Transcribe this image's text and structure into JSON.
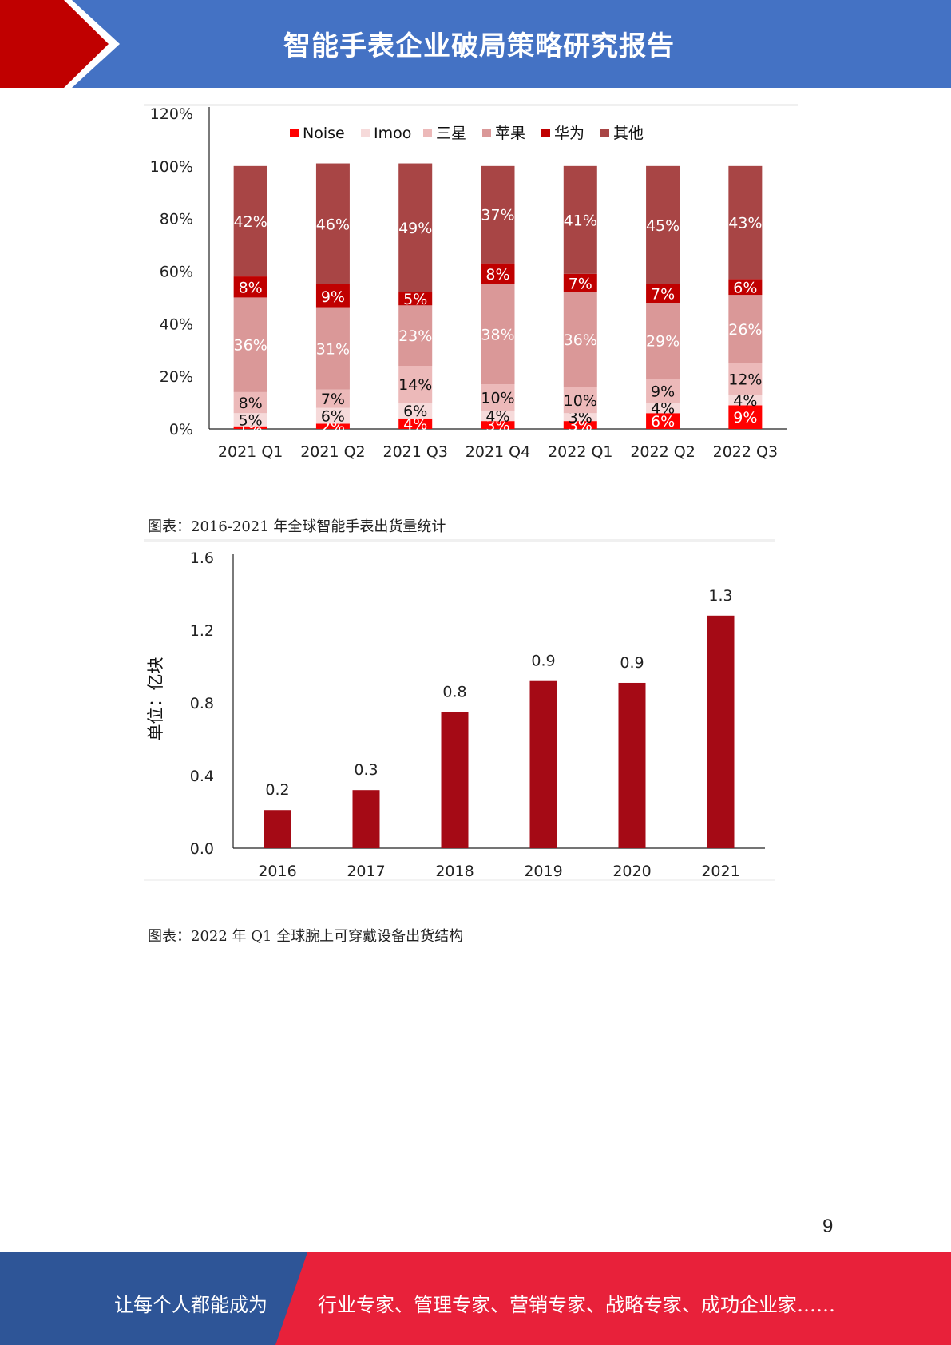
{
  "header": {
    "title": "智能手表企业破局策略研究报告"
  },
  "colors": {
    "header_blue": "#4472c4",
    "header_red": "#c00000",
    "footer_blue": "#2e5597",
    "footer_red": "#e8213a"
  },
  "chart1": {
    "chart_data": {
      "type": "bar",
      "stacked": true,
      "categories": [
        "2021 Q1",
        "2021 Q2",
        "2021 Q3",
        "2021 Q4",
        "2022 Q1",
        "2022 Q2",
        "2022 Q3"
      ],
      "y_ticks": [
        "0%",
        "20%",
        "40%",
        "60%",
        "80%",
        "100%",
        "120%"
      ],
      "ylim": [
        0,
        120
      ],
      "legend_position": "top",
      "series": [
        {
          "name": "Noise",
          "color": "#ff0000",
          "values": [
            1,
            2,
            4,
            3,
            3,
            6,
            9
          ],
          "labels": [
            "1%",
            "2%",
            "4%",
            "3%",
            "3%",
            "6%",
            "9%"
          ]
        },
        {
          "name": "Imoo",
          "color": "#f6dada",
          "values": [
            5,
            6,
            6,
            4,
            3,
            4,
            4
          ],
          "labels": [
            "5%",
            "6%",
            "6%",
            "4%",
            "3%",
            "4%",
            "4%"
          ]
        },
        {
          "name": "三星",
          "color": "#ecb9b9",
          "values": [
            8,
            7,
            14,
            10,
            10,
            9,
            12
          ],
          "labels": [
            "8%",
            "7%",
            "14%",
            "10%",
            "10%",
            "9%",
            "12%"
          ]
        },
        {
          "name": "苹果",
          "color": "#da9898",
          "values": [
            36,
            31,
            23,
            38,
            36,
            29,
            26
          ],
          "labels": [
            "36%",
            "31%",
            "23%",
            "38%",
            "36%",
            "29%",
            "26%"
          ]
        },
        {
          "name": "华为",
          "color": "#c00000",
          "values": [
            8,
            9,
            5,
            8,
            7,
            7,
            6
          ],
          "labels": [
            "8%",
            "9%",
            "5%",
            "8%",
            "7%",
            "7%",
            "6%"
          ]
        },
        {
          "name": "其他",
          "color": "#a84545",
          "values": [
            42,
            46,
            49,
            37,
            41,
            45,
            43
          ],
          "labels": [
            "42%",
            "46%",
            "49%",
            "37%",
            "41%",
            "45%",
            "43%"
          ]
        }
      ]
    }
  },
  "caption1": "图表：2016-2021 年全球智能手表出货量统计",
  "chart2": {
    "chart_data": {
      "type": "bar",
      "categories": [
        "2016",
        "2017",
        "2018",
        "2019",
        "2020",
        "2021"
      ],
      "values": [
        0.21,
        0.32,
        0.75,
        0.92,
        0.91,
        1.28
      ],
      "value_labels": [
        "0.2",
        "0.3",
        "0.8",
        "0.9",
        "0.9",
        "1.3"
      ],
      "y_ticks": [
        "0.0",
        "0.4",
        "0.8",
        "1.2",
        "1.6"
      ],
      "ylim": [
        0,
        1.6
      ],
      "ylabel": "单位：亿块",
      "bar_color": "#a50a15"
    }
  },
  "caption2": "图表：2022 年 Q1 全球腕上可穿戴设备出货结构",
  "page_number": "9",
  "footer": {
    "left_text": "让每个人都能成为",
    "right_text": "行业专家、管理专家、营销专家、战略专家、成功企业家……"
  }
}
